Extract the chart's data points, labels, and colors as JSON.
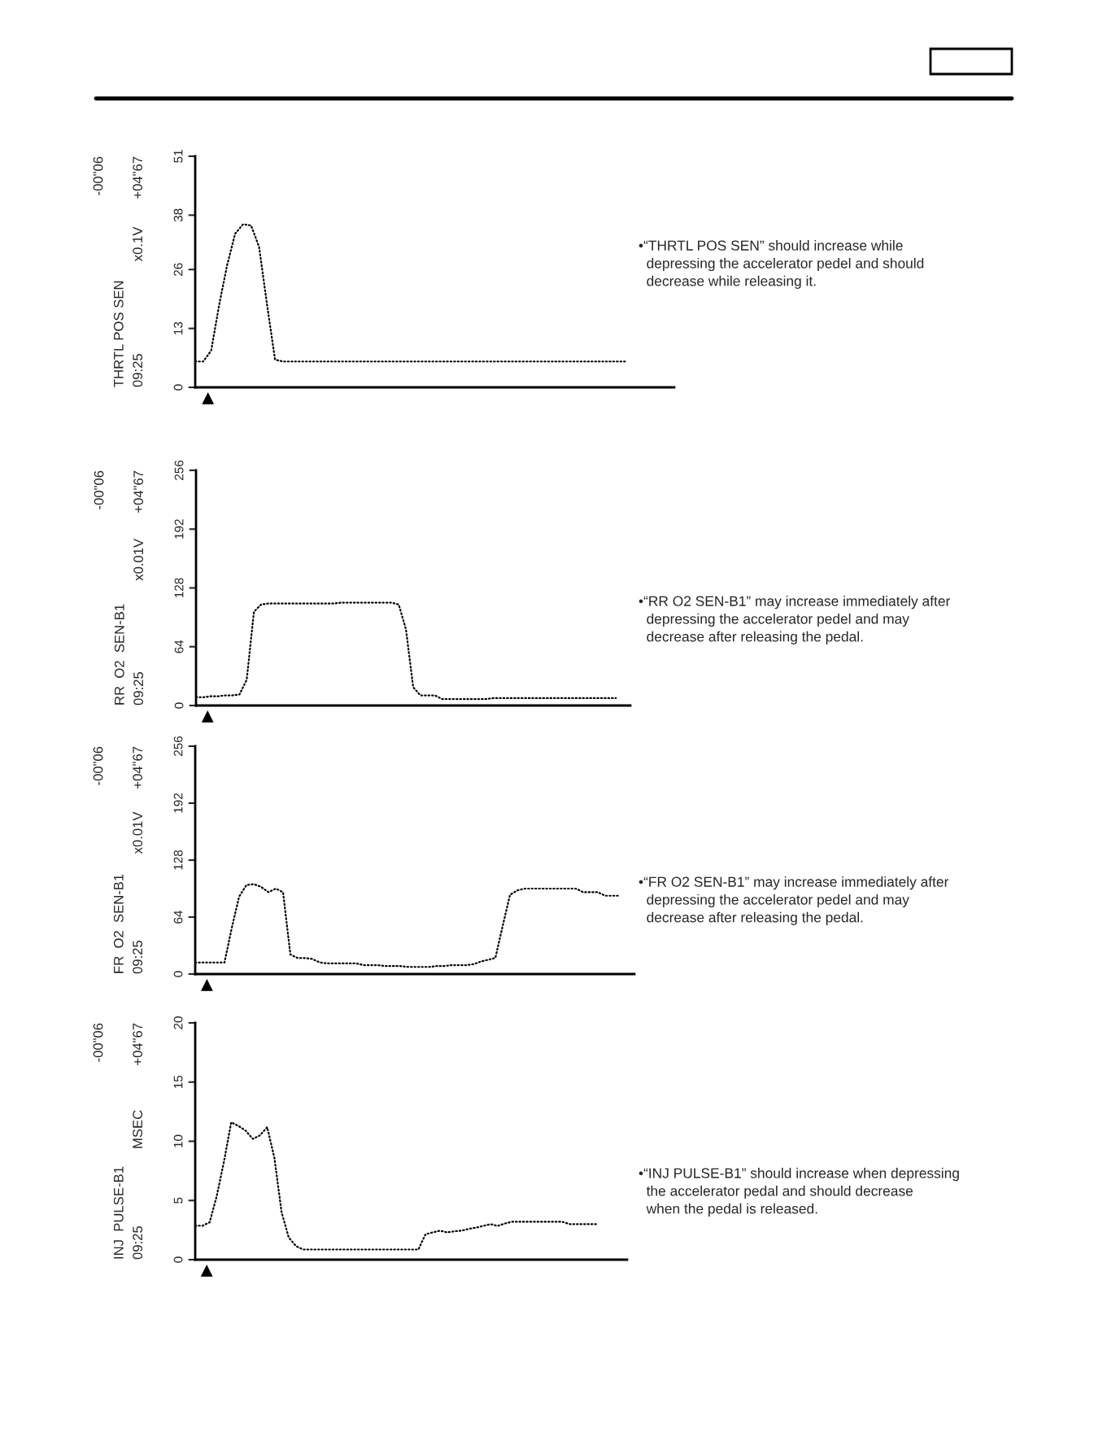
{
  "chart_data": [
    {
      "type": "line",
      "ylabel": "THRTL POS SEN",
      "annotations": [
        "-00\"06",
        "+04\"67",
        "x0.1V",
        "09:25",
        "•“THRTL POS SEN” should increase while\n  depressing the accelerator pedel and should\n  decrease while releasing it."
      ],
      "categories": [
        null,
        null,
        null,
        null,
        null,
        null,
        null,
        null,
        null,
        null,
        null,
        null,
        null,
        null,
        null,
        null,
        null,
        null,
        null,
        null,
        null,
        null,
        null,
        null,
        null,
        null,
        null,
        null,
        null,
        null,
        null,
        null,
        null,
        null,
        null,
        null,
        null,
        null,
        null,
        null,
        null,
        null,
        null,
        null,
        null,
        null,
        null,
        null,
        null,
        null,
        null,
        null,
        null,
        null,
        null,
        null,
        null,
        null,
        null,
        null,
        null
      ],
      "series": [
        {
          "color": "#000000",
          "values": [
            5.7,
            5.7,
            8.1,
            18.2,
            27,
            33.9,
            36,
            35.7,
            31,
            18.2,
            6.1,
            5.7,
            5.7,
            5.7,
            5.7,
            5.7,
            5.7,
            5.7,
            5.7,
            5.7,
            5.7,
            5.7,
            5.7,
            5.7,
            5.7,
            5.7,
            5.7,
            5.7,
            5.7,
            5.7,
            5.7,
            5.7,
            5.7,
            5.7,
            5.7,
            5.7,
            5.7,
            5.7,
            5.7,
            5.7,
            5.7,
            5.7,
            5.7,
            5.7,
            5.7,
            5.7,
            5.7,
            5.7,
            5.7,
            5.7,
            5.7,
            5.7,
            5.7,
            5.7,
            5.7,
            null,
            null,
            null,
            null,
            null,
            null
          ]
        }
      ],
      "ylim": [
        0,
        51
      ],
      "yticks": [
        0,
        13,
        26,
        38,
        51
      ],
      "marker": "none",
      "line_style": "dotted",
      "tick_labels": "y"
    },
    {
      "type": "line",
      "ylabel": "RR  O2  SEN-B1",
      "annotations": [
        "-00\"06",
        "+04\"67",
        "x0.01V",
        "09:25",
        "•“RR O2 SEN-B1” may increase immediately after\n  depressing the accelerator pedel and may\n  decrease after releasing the pedal."
      ],
      "categories": [
        null,
        null,
        null,
        null,
        null,
        null,
        null,
        null,
        null,
        null,
        null,
        null,
        null,
        null,
        null,
        null,
        null,
        null,
        null,
        null,
        null,
        null,
        null,
        null,
        null,
        null,
        null,
        null,
        null,
        null,
        null,
        null,
        null,
        null,
        null,
        null,
        null,
        null,
        null,
        null,
        null,
        null,
        null,
        null,
        null,
        null,
        null,
        null,
        null,
        null,
        null,
        null,
        null,
        null,
        null,
        null,
        null,
        null,
        null,
        null,
        null
      ],
      "series": [
        {
          "color": "#000000",
          "values": [
            9,
            9,
            10,
            10,
            11,
            11,
            12,
            28,
            102,
            110,
            111,
            111,
            111,
            111,
            111,
            111,
            111,
            111,
            111,
            111,
            112,
            112,
            112,
            112,
            112,
            112,
            112,
            112,
            110,
            83,
            20,
            11,
            11,
            11,
            7,
            7,
            7,
            7,
            7,
            7,
            7,
            8,
            8,
            8,
            8,
            8,
            8,
            8,
            8,
            8,
            8,
            8,
            8,
            8,
            8,
            8,
            8,
            8,
            8,
            null,
            null
          ]
        }
      ],
      "ylim": [
        0,
        256
      ],
      "yticks": [
        0,
        64,
        128,
        192,
        256
      ],
      "marker": "none",
      "line_style": "dotted",
      "tick_labels": "y"
    },
    {
      "type": "line",
      "ylabel": "FR  O2  SEN-B1",
      "annotations": [
        "-00\"06",
        "+04\"67",
        "x0.01V",
        "09:25",
        "•“FR O2 SEN-B1” may increase immediately after\n  depressing the accelerator pedel and may\n  decrease after releasing the pedal."
      ],
      "categories": [
        null,
        null,
        null,
        null,
        null,
        null,
        null,
        null,
        null,
        null,
        null,
        null,
        null,
        null,
        null,
        null,
        null,
        null,
        null,
        null,
        null,
        null,
        null,
        null,
        null,
        null,
        null,
        null,
        null,
        null,
        null,
        null,
        null,
        null,
        null,
        null,
        null,
        null,
        null,
        null,
        null,
        null,
        null,
        null,
        null,
        null,
        null,
        null,
        null,
        null,
        null,
        null,
        null,
        null,
        null,
        null,
        null,
        null,
        null,
        null,
        null
      ],
      "series": [
        {
          "color": "#000000",
          "values": [
            13,
            13,
            13,
            13,
            13,
            52,
            87,
            100,
            101,
            98,
            92,
            96,
            92,
            22,
            18,
            18,
            17,
            13,
            12,
            12,
            12,
            12,
            12,
            10,
            10,
            10,
            9,
            9,
            9,
            8,
            8,
            8,
            8,
            9,
            9,
            10,
            10,
            10,
            11,
            14,
            16,
            18,
            54,
            89,
            94,
            96,
            96,
            96,
            96,
            96,
            96,
            96,
            96,
            92,
            92,
            92,
            88,
            88,
            88,
            null,
            null
          ]
        }
      ],
      "ylim": [
        0,
        256
      ],
      "yticks": [
        0,
        64,
        128,
        192,
        256
      ],
      "marker": "none",
      "line_style": "dotted",
      "tick_labels": "y"
    },
    {
      "type": "line",
      "ylabel": "INJ  PULSE-B1",
      "annotations": [
        "-00\"06",
        "+04\"67",
        "MSEC",
        "09:25",
        "•“INJ PULSE-B1” should increase when depressing\n  the accelerator pedal and should decrease\n  when the pedal is released."
      ],
      "categories": [
        null,
        null,
        null,
        null,
        null,
        null,
        null,
        null,
        null,
        null,
        null,
        null,
        null,
        null,
        null,
        null,
        null,
        null,
        null,
        null,
        null,
        null,
        null,
        null,
        null,
        null,
        null,
        null,
        null,
        null,
        null,
        null,
        null,
        null,
        null,
        null,
        null,
        null,
        null,
        null,
        null,
        null,
        null,
        null,
        null,
        null,
        null,
        null,
        null,
        null,
        null,
        null,
        null,
        null,
        null,
        null,
        null,
        null,
        null,
        null,
        null
      ],
      "series": [
        {
          "color": "#000000",
          "values": [
            2.87,
            2.87,
            3.15,
            5.4,
            8.3,
            11.6,
            11.3,
            10.9,
            10.2,
            10.5,
            11.2,
            8.6,
            4.0,
            1.86,
            1.15,
            0.86,
            0.86,
            0.86,
            0.86,
            0.86,
            0.86,
            0.86,
            0.86,
            0.86,
            0.86,
            0.86,
            0.86,
            0.86,
            0.86,
            0.86,
            0.86,
            0.86,
            2.15,
            2.3,
            2.45,
            2.3,
            2.4,
            2.45,
            2.6,
            2.7,
            2.85,
            3.0,
            2.85,
            3.05,
            3.2,
            3.2,
            3.2,
            3.2,
            3.2,
            3.2,
            3.2,
            3.2,
            3.0,
            3.0,
            3.0,
            3.0,
            3.0,
            null,
            null,
            null,
            null
          ]
        }
      ],
      "ylim": [
        0,
        20
      ],
      "yticks": [
        0,
        5,
        10,
        15,
        20
      ],
      "marker": "none",
      "line_style": "dotted",
      "tick_labels": "y"
    }
  ]
}
